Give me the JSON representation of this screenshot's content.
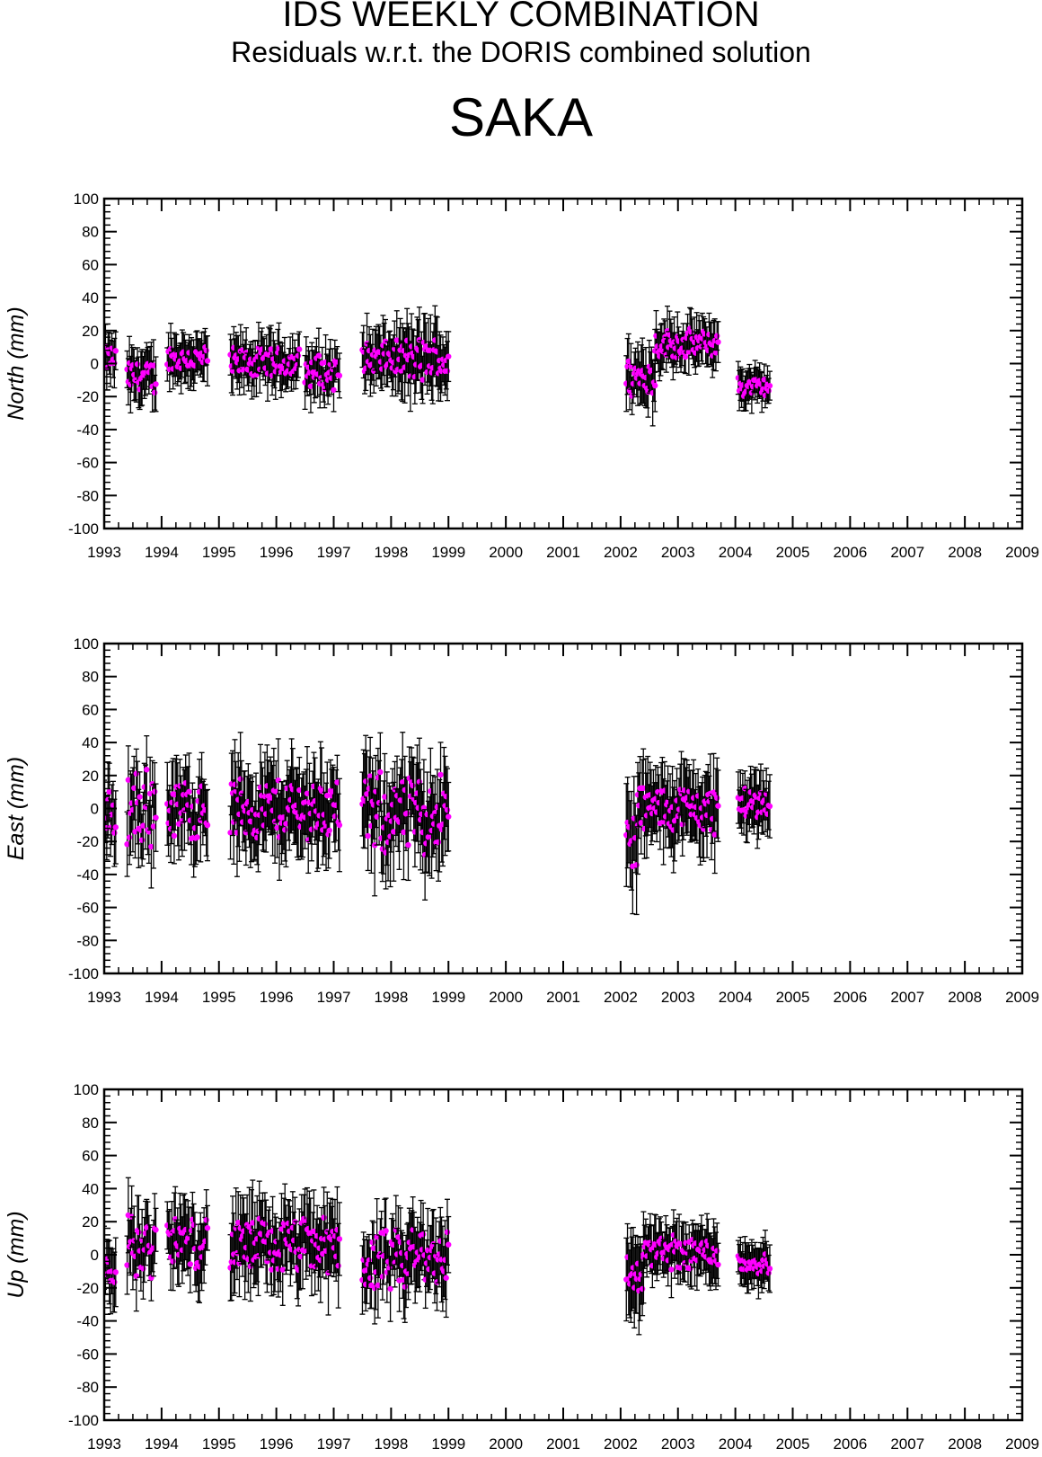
{
  "header": {
    "title": "IDS WEEKLY COMBINATION",
    "subtitle": "Residuals w.r.t. the DORIS combined solution",
    "station": "SAKA"
  },
  "colors": {
    "point": "#ff00ff",
    "errorbar": "#000000",
    "axis": "#000000"
  },
  "chart_data": [
    {
      "type": "scatter",
      "title": "",
      "xlabel": "",
      "ylabel": "North (mm)",
      "xlim": [
        1993,
        2009
      ],
      "ylim": [
        -100,
        100
      ],
      "xticks": [
        "1993",
        "1994",
        "1995",
        "1996",
        "1997",
        "1998",
        "1999",
        "2000",
        "2001",
        "2002",
        "2003",
        "2004",
        "2005",
        "2006",
        "2007",
        "2008",
        "2009"
      ],
      "yticks": [
        "100",
        "80",
        "60",
        "40",
        "20",
        "0",
        "-20",
        "-40",
        "-60",
        "-80",
        "-100"
      ],
      "error_bars": true,
      "segments": [
        {
          "start": 1993.0,
          "end": 1993.2,
          "mean": 3,
          "amp": 9,
          "err": 12
        },
        {
          "start": 1993.4,
          "end": 1993.9,
          "mean": -8,
          "amp": 12,
          "err": 14
        },
        {
          "start": 1994.1,
          "end": 1994.8,
          "mean": 3,
          "amp": 10,
          "err": 12
        },
        {
          "start": 1995.2,
          "end": 1996.4,
          "mean": 0,
          "amp": 11,
          "err": 13
        },
        {
          "start": 1996.5,
          "end": 1997.1,
          "mean": -5,
          "amp": 12,
          "err": 13
        },
        {
          "start": 1997.5,
          "end": 1998.2,
          "mean": 3,
          "amp": 12,
          "err": 15
        },
        {
          "start": 1998.2,
          "end": 1999.0,
          "mean": 2,
          "amp": 16,
          "err": 17
        },
        {
          "start": 2002.1,
          "end": 2002.6,
          "mean": -8,
          "amp": 14,
          "err": 16
        },
        {
          "start": 2002.6,
          "end": 2003.7,
          "mean": 12,
          "amp": 10,
          "err": 12
        },
        {
          "start": 2004.05,
          "end": 2004.6,
          "mean": -14,
          "amp": 7,
          "err": 10
        }
      ]
    },
    {
      "type": "scatter",
      "title": "",
      "xlabel": "",
      "ylabel": "East (mm)",
      "xlim": [
        1993,
        2009
      ],
      "ylim": [
        -100,
        100
      ],
      "xticks": [
        "1993",
        "1994",
        "1995",
        "1996",
        "1997",
        "1998",
        "1999",
        "2000",
        "2001",
        "2002",
        "2003",
        "2004",
        "2005",
        "2006",
        "2007",
        "2008",
        "2009"
      ],
      "yticks": [
        "100",
        "80",
        "60",
        "40",
        "20",
        "0",
        "-20",
        "-40",
        "-60",
        "-80",
        "-100"
      ],
      "error_bars": true,
      "segments": [
        {
          "start": 1993.0,
          "end": 1993.2,
          "mean": -5,
          "amp": 18,
          "err": 18
        },
        {
          "start": 1993.4,
          "end": 1993.9,
          "mean": 0,
          "amp": 30,
          "err": 20
        },
        {
          "start": 1994.1,
          "end": 1994.8,
          "mean": 0,
          "amp": 22,
          "err": 20
        },
        {
          "start": 1995.2,
          "end": 1997.1,
          "mean": 0,
          "amp": 22,
          "err": 22
        },
        {
          "start": 1997.5,
          "end": 1999.0,
          "mean": -3,
          "amp": 28,
          "err": 24
        },
        {
          "start": 2002.1,
          "end": 2002.3,
          "mean": -20,
          "amp": 30,
          "err": 25
        },
        {
          "start": 2002.3,
          "end": 2003.7,
          "mean": 0,
          "amp": 17,
          "err": 20
        },
        {
          "start": 2004.05,
          "end": 2004.6,
          "mean": 3,
          "amp": 12,
          "err": 15
        }
      ]
    },
    {
      "type": "scatter",
      "title": "",
      "xlabel": "",
      "ylabel": "Up (mm)",
      "xlim": [
        1993,
        2009
      ],
      "ylim": [
        -100,
        100
      ],
      "xticks": [
        "1993",
        "1994",
        "1995",
        "1996",
        "1997",
        "1998",
        "1999",
        "2000",
        "2001",
        "2002",
        "2003",
        "2004",
        "2005",
        "2006",
        "2007",
        "2008",
        "2009"
      ],
      "yticks": [
        "100",
        "80",
        "60",
        "40",
        "20",
        "0",
        "-20",
        "-40",
        "-60",
        "-80",
        "-100"
      ],
      "error_bars": true,
      "segments": [
        {
          "start": 1993.0,
          "end": 1993.2,
          "mean": -8,
          "amp": 12,
          "err": 16
        },
        {
          "start": 1993.4,
          "end": 1993.9,
          "mean": 5,
          "amp": 22,
          "err": 18
        },
        {
          "start": 1994.1,
          "end": 1994.8,
          "mean": 8,
          "amp": 18,
          "err": 18
        },
        {
          "start": 1995.2,
          "end": 1997.1,
          "mean": 5,
          "amp": 20,
          "err": 20
        },
        {
          "start": 1997.5,
          "end": 1998.3,
          "mean": -5,
          "amp": 22,
          "err": 18
        },
        {
          "start": 1998.3,
          "end": 1999.0,
          "mean": 0,
          "amp": 22,
          "err": 20
        },
        {
          "start": 2002.1,
          "end": 2002.4,
          "mean": -12,
          "amp": 15,
          "err": 22
        },
        {
          "start": 2002.4,
          "end": 2003.7,
          "mean": 2,
          "amp": 12,
          "err": 14
        },
        {
          "start": 2004.05,
          "end": 2004.6,
          "mean": -5,
          "amp": 8,
          "err": 12
        }
      ]
    }
  ]
}
